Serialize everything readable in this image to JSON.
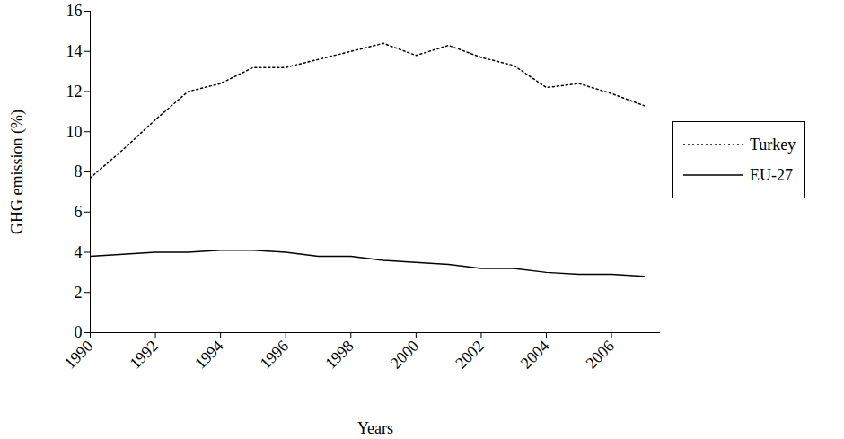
{
  "chart_data": {
    "type": "line",
    "x_label": "Years",
    "y_label": "GHG emission (%)",
    "x": [
      1990,
      1991,
      1992,
      1993,
      1994,
      1995,
      1996,
      1997,
      1998,
      1999,
      2000,
      2001,
      2002,
      2003,
      2004,
      2005,
      2006,
      2007
    ],
    "series": [
      {
        "name": "Turkey",
        "color": "#000000",
        "line_style": "dotted",
        "values": [
          7.7,
          9.1,
          10.6,
          12.0,
          12.4,
          13.2,
          13.2,
          13.6,
          14.0,
          14.4,
          13.8,
          14.3,
          13.7,
          13.3,
          12.2,
          12.4,
          11.9,
          11.3
        ]
      },
      {
        "name": "EU-27",
        "color": "#000000",
        "line_style": "solid",
        "values": [
          3.8,
          3.9,
          4.0,
          4.0,
          4.1,
          4.1,
          4.0,
          3.8,
          3.8,
          3.6,
          3.5,
          3.4,
          3.2,
          3.2,
          3.0,
          2.9,
          2.9,
          2.8
        ]
      }
    ],
    "xlim": [
      1990,
      2007.5
    ],
    "xticks": [
      1990,
      1992,
      1994,
      1996,
      1998,
      2000,
      2002,
      2004,
      2006
    ],
    "ylim": [
      0,
      16
    ],
    "yticks": [
      0,
      2,
      4,
      6,
      8,
      10,
      12,
      14,
      16
    ],
    "grid": false,
    "legend": "right"
  }
}
